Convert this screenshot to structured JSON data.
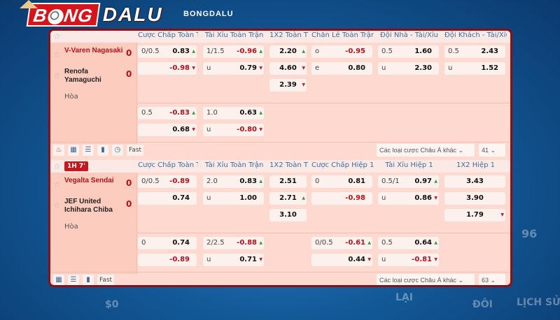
{
  "brand": {
    "name": "BONGDALU",
    "part1": "B",
    "part2": "NG",
    "part3": "DALU"
  },
  "colors": {
    "accent": "#b5121b",
    "panel": "#fdd9cf",
    "border": "#8b0f14",
    "up": "#2a9a3a",
    "down": "#d01020"
  },
  "background_text": [
    "$0",
    "LẠI",
    "ĐÔI",
    "LỊCH SỬ",
    "96"
  ],
  "matches": [
    {
      "badge": "",
      "teams": [
        {
          "name": "V-Varen Nagasaki",
          "score": "0",
          "color": "red"
        },
        {
          "name": "Renofa Yamaguchi",
          "score": "0",
          "color": "black"
        }
      ],
      "draw": "Hòa",
      "columns": [
        "Cược Chấp Toàn T...",
        "Tài Xỉu Toàn Trận",
        "1X2 Toàn T...",
        "Chẵn Lẻ Toàn Trận",
        "Đội Nhà - Tài/Xỉu",
        "Đội Khách - Tài/Xỉu"
      ],
      "main": [
        [
          {
            "l": "0/0.5",
            "v": "0.83",
            "t": "up"
          },
          {
            "l": "",
            "v": "-0.98",
            "r": 1,
            "t": "down"
          }
        ],
        [
          {
            "l": "1/1.5",
            "v": "-0.96",
            "r": 1,
            "t": "up"
          },
          {
            "l": "u",
            "v": "0.79",
            "t": "down"
          }
        ],
        [
          {
            "v": "2.20",
            "t": "up"
          },
          {
            "v": "4.60",
            "t": "down"
          },
          {
            "v": "2.39",
            "t": "down"
          }
        ],
        [
          {
            "l": "o",
            "v": "-0.95",
            "r": 1
          },
          {
            "l": "e",
            "v": "0.80"
          }
        ],
        [
          {
            "l": "0.5",
            "v": "1.60"
          },
          {
            "l": "u",
            "v": "2.30"
          }
        ],
        [
          {
            "l": "0.5",
            "v": "2.43"
          },
          {
            "l": "u",
            "v": "1.52"
          }
        ]
      ],
      "sub": [
        [
          {
            "l": "0.5",
            "v": "-0.83",
            "r": 1,
            "t": "up"
          },
          {
            "l": "",
            "v": "0.68",
            "t": "down"
          }
        ],
        [
          {
            "l": "1.0",
            "v": "0.63",
            "t": "up"
          },
          {
            "l": "u",
            "v": "-0.80",
            "r": 1,
            "t": "down"
          }
        ],
        [],
        [],
        [],
        []
      ],
      "toolbar": {
        "icons": [
          "fire-icon",
          "grid-icon",
          "list-icon",
          "chart-icon",
          "clock-icon"
        ],
        "fast": "Fast",
        "market_select": "Các loại cược Châu Á khác",
        "count_select": "41"
      }
    },
    {
      "badge": "1H 7'",
      "teams": [
        {
          "name": "Vegalta Sendai",
          "score": "0",
          "color": "red"
        },
        {
          "name": "JEF United Ichihara Chiba",
          "score": "0",
          "color": "black"
        }
      ],
      "draw": "Hòa",
      "columns": [
        "Cược Chấp Toàn T...",
        "Tài Xỉu Toàn Trận",
        "1X2 Toàn T...",
        "Cược Chấp Hiệp 1",
        "Tài Xỉu Hiệp 1",
        "1X2 Hiệp 1"
      ],
      "main": [
        [
          {
            "l": "0/0.5",
            "v": "-0.89",
            "r": 1
          },
          {
            "l": "",
            "v": "0.74"
          }
        ],
        [
          {
            "l": "2.0",
            "v": "0.83",
            "t": "up"
          },
          {
            "l": "u",
            "v": "1.00"
          }
        ],
        [
          {
            "v": "2.51"
          },
          {
            "v": "2.71",
            "t": "up"
          },
          {
            "v": "3.10"
          }
        ],
        [
          {
            "l": "0",
            "v": "0.81"
          },
          {
            "l": "",
            "v": "-0.98",
            "r": 1
          }
        ],
        [
          {
            "l": "0.5/1",
            "v": "0.97",
            "t": "up"
          },
          {
            "l": "u",
            "v": "0.86",
            "t": "down"
          }
        ],
        [
          {
            "v": "3.43"
          },
          {
            "v": "3.90"
          },
          {
            "v": "1.79",
            "t": "down"
          }
        ]
      ],
      "sub": [
        [
          {
            "l": "0",
            "v": "0.74"
          },
          {
            "l": "",
            "v": "-0.89",
            "r": 1
          }
        ],
        [
          {
            "l": "2/2.5",
            "v": "-0.88",
            "r": 1,
            "t": "up"
          },
          {
            "l": "u",
            "v": "0.71",
            "t": "down"
          }
        ],
        [],
        [
          {
            "l": "0/0.5",
            "v": "-0.61",
            "r": 1,
            "t": "up"
          },
          {
            "l": "",
            "v": "0.44",
            "t": "down"
          }
        ],
        [
          {
            "l": "0.5",
            "v": "0.64",
            "t": "up"
          },
          {
            "l": "u",
            "v": "-0.81",
            "r": 1,
            "t": "down"
          }
        ],
        []
      ],
      "toolbar": {
        "icons": [
          "grid-icon",
          "list-icon",
          "chart-icon"
        ],
        "fast": "Fast",
        "market_select": "Các loại cược Châu Á khác",
        "count_select": "63"
      }
    }
  ]
}
